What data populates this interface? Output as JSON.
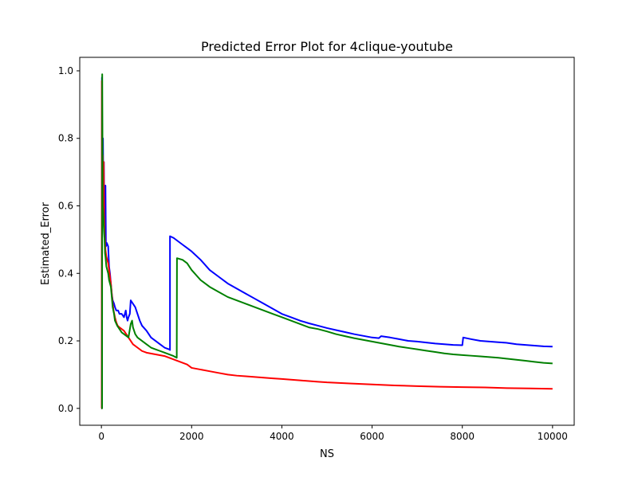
{
  "chart_data": {
    "type": "line",
    "title": "Predicted Error Plot for 4clique-youtube",
    "xlabel": "NS",
    "ylabel": "Estimated_Error",
    "xlim": [
      -480,
      10480
    ],
    "ylim": [
      -0.05,
      1.04
    ],
    "x_ticks": [
      0,
      2000,
      4000,
      6000,
      8000,
      10000
    ],
    "x_tick_labels": [
      "0",
      "2000",
      "4000",
      "6000",
      "8000",
      "10000"
    ],
    "y_ticks": [
      0.0,
      0.2,
      0.4,
      0.6,
      0.8,
      1.0
    ],
    "y_tick_labels": [
      "0.0",
      "0.2",
      "0.4",
      "0.6",
      "0.8",
      "1.0"
    ],
    "grid": false,
    "legend": "none",
    "series": [
      {
        "color": "#0000ff",
        "points": [
          [
            0,
            0.0
          ],
          [
            10,
            0.0
          ],
          [
            12,
            0.98
          ],
          [
            25,
            0.55
          ],
          [
            35,
            0.8
          ],
          [
            45,
            0.6
          ],
          [
            55,
            0.73
          ],
          [
            65,
            0.55
          ],
          [
            75,
            0.62
          ],
          [
            90,
            0.66
          ],
          [
            100,
            0.48
          ],
          [
            120,
            0.49
          ],
          [
            150,
            0.48
          ],
          [
            170,
            0.42
          ],
          [
            190,
            0.4
          ],
          [
            210,
            0.37
          ],
          [
            230,
            0.34
          ],
          [
            250,
            0.32
          ],
          [
            280,
            0.31
          ],
          [
            300,
            0.3
          ],
          [
            330,
            0.29
          ],
          [
            370,
            0.29
          ],
          [
            400,
            0.28
          ],
          [
            450,
            0.28
          ],
          [
            500,
            0.27
          ],
          [
            520,
            0.28
          ],
          [
            540,
            0.29
          ],
          [
            560,
            0.27
          ],
          [
            580,
            0.26
          ],
          [
            600,
            0.27
          ],
          [
            630,
            0.28
          ],
          [
            650,
            0.32
          ],
          [
            700,
            0.31
          ],
          [
            750,
            0.3
          ],
          [
            800,
            0.28
          ],
          [
            850,
            0.26
          ],
          [
            900,
            0.245
          ],
          [
            1000,
            0.23
          ],
          [
            1100,
            0.21
          ],
          [
            1200,
            0.2
          ],
          [
            1300,
            0.19
          ],
          [
            1400,
            0.18
          ],
          [
            1500,
            0.175
          ],
          [
            1520,
            0.173
          ],
          [
            1520,
            0.51
          ],
          [
            1600,
            0.505
          ],
          [
            1700,
            0.495
          ],
          [
            1800,
            0.485
          ],
          [
            1900,
            0.475
          ],
          [
            2000,
            0.465
          ],
          [
            2200,
            0.44
          ],
          [
            2400,
            0.41
          ],
          [
            2600,
            0.39
          ],
          [
            2800,
            0.37
          ],
          [
            3000,
            0.355
          ],
          [
            3200,
            0.34
          ],
          [
            3400,
            0.325
          ],
          [
            3600,
            0.31
          ],
          [
            3800,
            0.295
          ],
          [
            4000,
            0.28
          ],
          [
            4200,
            0.27
          ],
          [
            4400,
            0.26
          ],
          [
            4600,
            0.252
          ],
          [
            4800,
            0.245
          ],
          [
            5000,
            0.238
          ],
          [
            5200,
            0.232
          ],
          [
            5400,
            0.226
          ],
          [
            5600,
            0.22
          ],
          [
            5800,
            0.215
          ],
          [
            6000,
            0.21
          ],
          [
            6150,
            0.208
          ],
          [
            6200,
            0.214
          ],
          [
            6400,
            0.21
          ],
          [
            6600,
            0.205
          ],
          [
            6800,
            0.2
          ],
          [
            7000,
            0.198
          ],
          [
            7200,
            0.195
          ],
          [
            7400,
            0.192
          ],
          [
            7600,
            0.19
          ],
          [
            7800,
            0.188
          ],
          [
            8000,
            0.187
          ],
          [
            8020,
            0.21
          ],
          [
            8200,
            0.205
          ],
          [
            8400,
            0.2
          ],
          [
            8600,
            0.198
          ],
          [
            8800,
            0.196
          ],
          [
            9000,
            0.194
          ],
          [
            9200,
            0.19
          ],
          [
            9400,
            0.188
          ],
          [
            9600,
            0.186
          ],
          [
            9800,
            0.184
          ],
          [
            10000,
            0.183
          ]
        ]
      },
      {
        "color": "#ff0000",
        "points": [
          [
            0,
            0.0
          ],
          [
            8,
            0.0
          ],
          [
            10,
            0.97
          ],
          [
            20,
            0.6
          ],
          [
            30,
            0.75
          ],
          [
            40,
            0.55
          ],
          [
            50,
            0.73
          ],
          [
            60,
            0.58
          ],
          [
            70,
            0.52
          ],
          [
            90,
            0.47
          ],
          [
            110,
            0.45
          ],
          [
            130,
            0.44
          ],
          [
            150,
            0.43
          ],
          [
            170,
            0.41
          ],
          [
            190,
            0.39
          ],
          [
            210,
            0.37
          ],
          [
            230,
            0.34
          ],
          [
            250,
            0.31
          ],
          [
            270,
            0.29
          ],
          [
            300,
            0.27
          ],
          [
            330,
            0.255
          ],
          [
            360,
            0.245
          ],
          [
            400,
            0.24
          ],
          [
            450,
            0.235
          ],
          [
            500,
            0.23
          ],
          [
            550,
            0.22
          ],
          [
            600,
            0.21
          ],
          [
            650,
            0.2
          ],
          [
            700,
            0.19
          ],
          [
            800,
            0.18
          ],
          [
            900,
            0.17
          ],
          [
            1000,
            0.165
          ],
          [
            1200,
            0.16
          ],
          [
            1400,
            0.155
          ],
          [
            1600,
            0.145
          ],
          [
            1700,
            0.14
          ],
          [
            1800,
            0.135
          ],
          [
            1900,
            0.13
          ],
          [
            2000,
            0.12
          ],
          [
            2200,
            0.115
          ],
          [
            2400,
            0.11
          ],
          [
            2600,
            0.105
          ],
          [
            2800,
            0.1
          ],
          [
            3000,
            0.097
          ],
          [
            3200,
            0.095
          ],
          [
            3400,
            0.093
          ],
          [
            3600,
            0.091
          ],
          [
            3800,
            0.089
          ],
          [
            4000,
            0.087
          ],
          [
            4200,
            0.085
          ],
          [
            4400,
            0.083
          ],
          [
            4600,
            0.081
          ],
          [
            4800,
            0.079
          ],
          [
            5000,
            0.077
          ],
          [
            5500,
            0.074
          ],
          [
            6000,
            0.071
          ],
          [
            6500,
            0.068
          ],
          [
            7000,
            0.066
          ],
          [
            7500,
            0.064
          ],
          [
            8000,
            0.063
          ],
          [
            8500,
            0.062
          ],
          [
            9000,
            0.06
          ],
          [
            9500,
            0.059
          ],
          [
            10000,
            0.058
          ]
        ]
      },
      {
        "color": "#008000",
        "points": [
          [
            0,
            0.0
          ],
          [
            15,
            0.0
          ],
          [
            18,
            0.99
          ],
          [
            30,
            0.6
          ],
          [
            40,
            0.58
          ],
          [
            50,
            0.55
          ],
          [
            60,
            0.52
          ],
          [
            70,
            0.5
          ],
          [
            80,
            0.46
          ],
          [
            90,
            0.45
          ],
          [
            110,
            0.42
          ],
          [
            130,
            0.41
          ],
          [
            150,
            0.4
          ],
          [
            170,
            0.38
          ],
          [
            190,
            0.37
          ],
          [
            210,
            0.36
          ],
          [
            230,
            0.33
          ],
          [
            250,
            0.3
          ],
          [
            280,
            0.28
          ],
          [
            300,
            0.26
          ],
          [
            350,
            0.245
          ],
          [
            400,
            0.235
          ],
          [
            450,
            0.225
          ],
          [
            500,
            0.22
          ],
          [
            550,
            0.215
          ],
          [
            600,
            0.21
          ],
          [
            650,
            0.25
          ],
          [
            680,
            0.26
          ],
          [
            700,
            0.24
          ],
          [
            750,
            0.22
          ],
          [
            800,
            0.21
          ],
          [
            900,
            0.2
          ],
          [
            1000,
            0.19
          ],
          [
            1100,
            0.18
          ],
          [
            1200,
            0.175
          ],
          [
            1300,
            0.17
          ],
          [
            1400,
            0.165
          ],
          [
            1500,
            0.16
          ],
          [
            1600,
            0.155
          ],
          [
            1670,
            0.15
          ],
          [
            1675,
            0.445
          ],
          [
            1800,
            0.44
          ],
          [
            1900,
            0.43
          ],
          [
            2000,
            0.41
          ],
          [
            2200,
            0.38
          ],
          [
            2400,
            0.36
          ],
          [
            2600,
            0.345
          ],
          [
            2800,
            0.33
          ],
          [
            3000,
            0.32
          ],
          [
            3200,
            0.31
          ],
          [
            3400,
            0.3
          ],
          [
            3600,
            0.29
          ],
          [
            3800,
            0.28
          ],
          [
            4000,
            0.27
          ],
          [
            4200,
            0.26
          ],
          [
            4400,
            0.25
          ],
          [
            4600,
            0.24
          ],
          [
            4800,
            0.235
          ],
          [
            5000,
            0.228
          ],
          [
            5200,
            0.22
          ],
          [
            5400,
            0.214
          ],
          [
            5600,
            0.208
          ],
          [
            5800,
            0.203
          ],
          [
            6000,
            0.198
          ],
          [
            6200,
            0.193
          ],
          [
            6400,
            0.188
          ],
          [
            6600,
            0.183
          ],
          [
            6800,
            0.179
          ],
          [
            7000,
            0.175
          ],
          [
            7200,
            0.171
          ],
          [
            7400,
            0.167
          ],
          [
            7600,
            0.163
          ],
          [
            7800,
            0.16
          ],
          [
            8000,
            0.158
          ],
          [
            8200,
            0.156
          ],
          [
            8400,
            0.154
          ],
          [
            8600,
            0.152
          ],
          [
            8800,
            0.15
          ],
          [
            9000,
            0.147
          ],
          [
            9200,
            0.144
          ],
          [
            9400,
            0.141
          ],
          [
            9600,
            0.138
          ],
          [
            9800,
            0.135
          ],
          [
            10000,
            0.133
          ]
        ]
      }
    ]
  }
}
